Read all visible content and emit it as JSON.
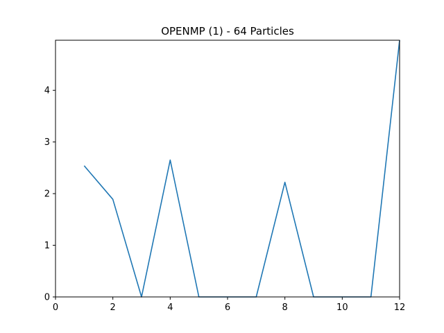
{
  "chart_data": {
    "type": "line",
    "title": "OPENMP (1) - 64 Particles",
    "xlabel": "",
    "ylabel": "",
    "xlim": [
      0,
      12
    ],
    "ylim": [
      0,
      4.97
    ],
    "xticks": [
      0,
      2,
      4,
      6,
      8,
      10,
      12
    ],
    "yticks": [
      0,
      1,
      2,
      3,
      4
    ],
    "grid": false,
    "series": [
      {
        "color": "#1f77b4",
        "x": [
          1,
          2,
          3,
          4,
          5,
          6,
          7,
          8,
          9,
          10,
          11,
          12
        ],
        "y": [
          2.54,
          1.89,
          0.0,
          2.65,
          0.0,
          0.0,
          0.0,
          2.22,
          0.0,
          0.0,
          0.0,
          4.97
        ]
      }
    ]
  }
}
